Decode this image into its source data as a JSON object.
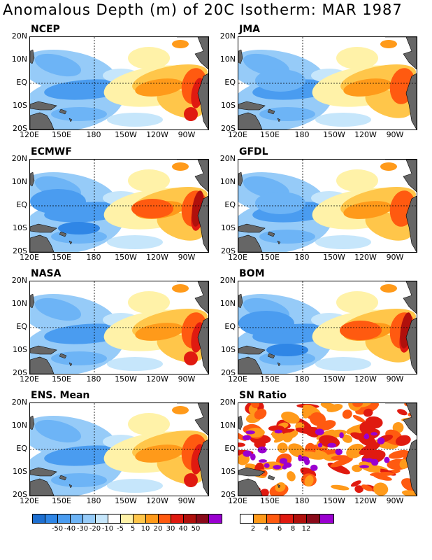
{
  "title": "Anomalous Depth (m) of 20C Isotherm: MAR 1987",
  "panels": [
    {
      "label": "NCEP",
      "pattern": "a"
    },
    {
      "label": "JMA",
      "pattern": "b"
    },
    {
      "label": "ECMWF",
      "pattern": "c"
    },
    {
      "label": "GFDL",
      "pattern": "b"
    },
    {
      "label": "NASA",
      "pattern": "a"
    },
    {
      "label": "BOM",
      "pattern": "c"
    },
    {
      "label": "ENS. Mean",
      "pattern": "a"
    },
    {
      "label": "SN Ratio",
      "pattern": "sn"
    }
  ],
  "lat_labels": [
    "20N",
    "10N",
    "EQ",
    "10S",
    "20S"
  ],
  "lon_labels": [
    "120E",
    "150E",
    "180",
    "150W",
    "120W",
    "90W"
  ],
  "anomaly_colorbar": {
    "labels": [
      "-50",
      "-40",
      "-30",
      "-20",
      "-10",
      "-5",
      "5",
      "10",
      "20",
      "30",
      "40",
      "50"
    ],
    "colors": [
      "#1e6fd0",
      "#2f86e6",
      "#4a9cf0",
      "#6db4f6",
      "#96cbf8",
      "#c6e6fb",
      "#ffffff",
      "#fff2a8",
      "#ffc64a",
      "#ff9a1a",
      "#ff5a10",
      "#e01a10",
      "#b0100c",
      "#8a0a1a",
      "#9a00d0"
    ]
  },
  "sn_colorbar": {
    "labels": [
      "2",
      "4",
      "6",
      "8",
      "12"
    ],
    "colors": [
      "#ffffff",
      "#ff9a1a",
      "#ff5a10",
      "#e01a10",
      "#b0100c",
      "#8a0a1a",
      "#9a00d0"
    ]
  },
  "colors": {
    "land": "#666666",
    "frame": "#000000"
  }
}
